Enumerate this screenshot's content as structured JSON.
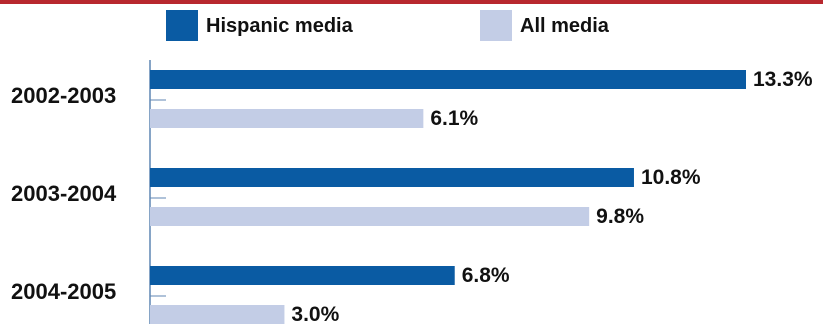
{
  "colors": {
    "top_rule": "#b8282e",
    "hispanic": "#0a5ba3",
    "all": "#c3cde6",
    "axis": "#5f86b3"
  },
  "legend": {
    "items": [
      {
        "label": "Hispanic media",
        "color": "#0a5ba3"
      },
      {
        "label": "All media",
        "color": "#c3cde6"
      }
    ]
  },
  "chart_data": {
    "type": "bar",
    "orientation": "horizontal",
    "title": "",
    "xlabel": "",
    "ylabel": "",
    "categories": [
      "2002-2003",
      "2003-2004",
      "2004-2005"
    ],
    "series": [
      {
        "name": "Hispanic media",
        "values": [
          13.3,
          10.8,
          6.8
        ],
        "labels": [
          "13.3%",
          "10.8%",
          "6.8%"
        ]
      },
      {
        "name": "All media",
        "values": [
          6.1,
          9.8,
          3.0
        ],
        "labels": [
          "6.1%",
          "9.8%",
          "3.0%"
        ]
      }
    ],
    "xlim": [
      0,
      13.3
    ],
    "grid": false,
    "legend_position": "top"
  }
}
